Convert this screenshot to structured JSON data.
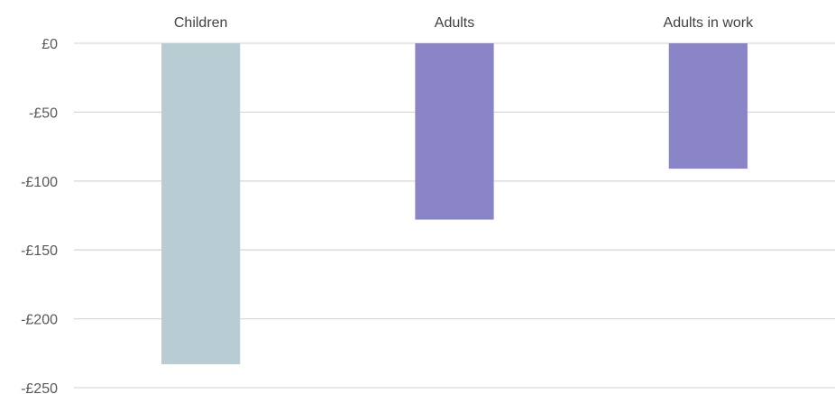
{
  "chart_data": {
    "type": "bar",
    "categories": [
      "Children",
      "Adults",
      "Adults in work"
    ],
    "values": [
      -233,
      -128,
      -91
    ],
    "colors": [
      "#b7cdd3",
      "#8884c6",
      "#8884c6"
    ],
    "ylim": [
      -250,
      0
    ],
    "yticks": [
      0,
      -50,
      -100,
      -150,
      -200,
      -250
    ],
    "ytick_labels": [
      "£0",
      "-£50",
      "-£100",
      "-£150",
      "-£200",
      "-£250"
    ],
    "category_axis_position": "top",
    "grid": true,
    "legend": false,
    "title": "",
    "xlabel": "",
    "ylabel": ""
  }
}
